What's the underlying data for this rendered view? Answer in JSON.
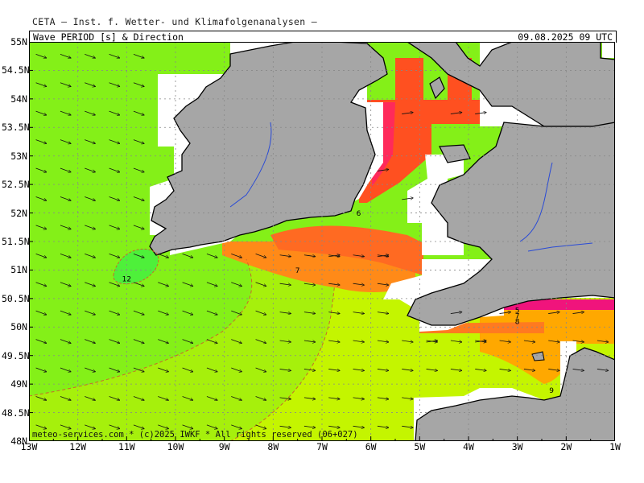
{
  "header": {
    "org": "CETA – Inst. f. Wetter- und Klimafolgenanalysen –",
    "product": "Wave_PERIOD_[s]_&_Direction",
    "valid_time": "09.08.2025 09 UTC"
  },
  "footer": "meteo-services.com * (c)2025 IWKF * All rights reserved (06+027)",
  "map": {
    "lon_range": [
      -13,
      -1
    ],
    "lat_range": [
      48,
      55
    ],
    "x_ticks": [
      "13W",
      "12W",
      "11W",
      "10W",
      "9W",
      "8W",
      "7W",
      "6W",
      "5W",
      "4W",
      "3W",
      "2W",
      "1W"
    ],
    "y_ticks": [
      "55N",
      "54.5N",
      "54N",
      "53.5N",
      "53N",
      "52.5N",
      "52N",
      "51.5N",
      "51N",
      "50.5N",
      "50N",
      "49.5N",
      "49N",
      "48.5N",
      "48N"
    ],
    "contour_labels": [
      {
        "text": "12",
        "lon": -11.0,
        "lat": 50.8
      },
      {
        "text": "7",
        "lon": -7.5,
        "lat": 50.95
      },
      {
        "text": "6",
        "lon": -6.25,
        "lat": 51.95
      },
      {
        "text": "5",
        "lon": -3.0,
        "lat": 50.25
      },
      {
        "text": "7",
        "lon": -3.0,
        "lat": 50.15
      },
      {
        "text": "8",
        "lon": -3.0,
        "lat": 50.05
      },
      {
        "text": "9",
        "lon": -2.3,
        "lat": 48.85
      }
    ],
    "colors": {
      "land": "#a6a6a6",
      "coast": "#000000",
      "rivers": "#2a4bd6",
      "period_12": "#5ef23a",
      "period_11": "#80f020",
      "period_10": "#a8f010",
      "period_9": "#c8f500",
      "period_8": "#ffa800",
      "period_7": "#ff7a1e",
      "period_6": "#ff5a20",
      "period_5": "#ff3050",
      "period_4": "#f0148c"
    },
    "wave_direction": "from W-NW toward E-SE"
  }
}
